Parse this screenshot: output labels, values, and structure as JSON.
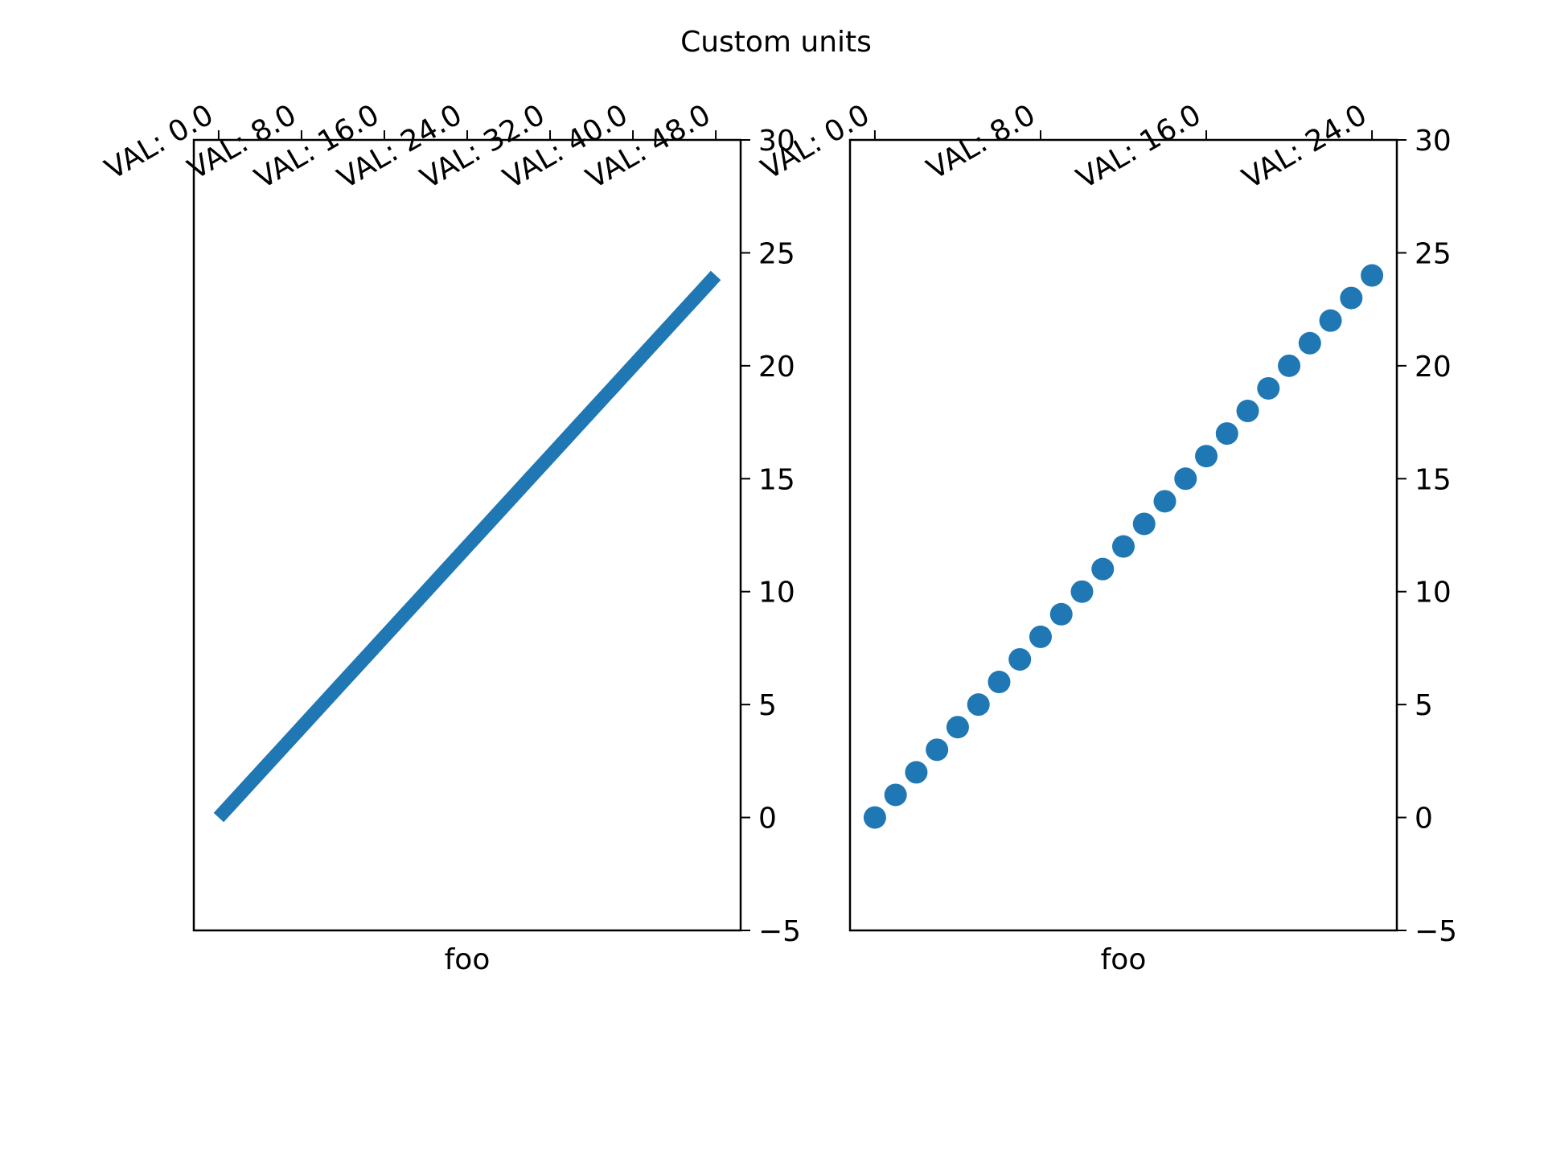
{
  "title": "Custom units",
  "chart_data": [
    {
      "type": "line",
      "xlabel": "foo",
      "color": "#1f77b4",
      "x": [
        0,
        1,
        2,
        3,
        4,
        5,
        6,
        7,
        8,
        9,
        10,
        11,
        12,
        13,
        14,
        15,
        16,
        17,
        18,
        19,
        20,
        21,
        22,
        23,
        24
      ],
      "values": [
        0,
        1,
        2,
        3,
        4,
        5,
        6,
        7,
        8,
        9,
        10,
        11,
        12,
        13,
        14,
        15,
        16,
        17,
        18,
        19,
        20,
        21,
        22,
        23,
        24
      ],
      "xlim": [
        -1.2,
        25.2
      ],
      "ylim": [
        -5,
        30
      ],
      "xticks": [
        {
          "value": 0,
          "label": "VAL: 0.0"
        },
        {
          "value": 4,
          "label": "VAL: 8.0"
        },
        {
          "value": 8,
          "label": "VAL: 16.0"
        },
        {
          "value": 12,
          "label": "VAL: 24.0"
        },
        {
          "value": 16,
          "label": "VAL: 32.0"
        },
        {
          "value": 20,
          "label": "VAL: 40.0"
        },
        {
          "value": 24,
          "label": "VAL: 48.0"
        }
      ],
      "yticks": [
        {
          "value": -5,
          "label": "−5"
        },
        0,
        5,
        10,
        15,
        20,
        25,
        30
      ]
    },
    {
      "type": "scatter",
      "xlabel": "foo",
      "color": "#1f77b4",
      "x": [
        0,
        1,
        2,
        3,
        4,
        5,
        6,
        7,
        8,
        9,
        10,
        11,
        12,
        13,
        14,
        15,
        16,
        17,
        18,
        19,
        20,
        21,
        22,
        23,
        24
      ],
      "values": [
        0,
        1,
        2,
        3,
        4,
        5,
        6,
        7,
        8,
        9,
        10,
        11,
        12,
        13,
        14,
        15,
        16,
        17,
        18,
        19,
        20,
        21,
        22,
        23,
        24
      ],
      "xlim": [
        -1.2,
        25.2
      ],
      "ylim": [
        -5,
        30
      ],
      "xticks": [
        {
          "value": 0,
          "label": "VAL: 0.0"
        },
        {
          "value": 8,
          "label": "VAL: 8.0"
        },
        {
          "value": 16,
          "label": "VAL: 16.0"
        },
        {
          "value": 24,
          "label": "VAL: 24.0"
        }
      ],
      "yticks": [
        {
          "value": -5,
          "label": "−5"
        },
        0,
        5,
        10,
        15,
        20,
        25,
        30
      ]
    }
  ]
}
